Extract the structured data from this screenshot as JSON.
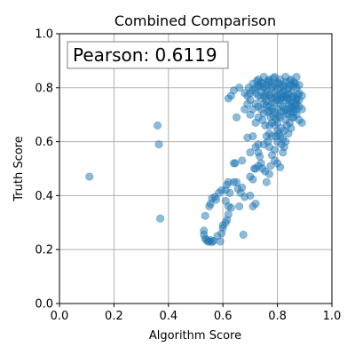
{
  "chart_data": {
    "type": "scatter",
    "title": "Combined Comparison",
    "xlabel": "Algorithm Score",
    "ylabel": "Truth Score",
    "xlim": [
      0.0,
      1.0
    ],
    "ylim": [
      0.0,
      1.0
    ],
    "xticks": [
      "0.0",
      "0.2",
      "0.4",
      "0.6",
      "0.8",
      "1.0"
    ],
    "yticks": [
      "0.0",
      "0.2",
      "0.4",
      "0.6",
      "0.8",
      "1.0"
    ],
    "grid": true,
    "marker_color": "#1f77b4",
    "annotation": "Pearson: 0.6119",
    "annotation_position": "top-left",
    "series": [
      {
        "points": [
          [
            0.11,
            0.47
          ],
          [
            0.36,
            0.66
          ],
          [
            0.365,
            0.59
          ],
          [
            0.37,
            0.315
          ],
          [
            0.53,
            0.27
          ],
          [
            0.53,
            0.255
          ],
          [
            0.535,
            0.24
          ],
          [
            0.54,
            0.235
          ],
          [
            0.545,
            0.23
          ],
          [
            0.55,
            0.23
          ],
          [
            0.555,
            0.235
          ],
          [
            0.56,
            0.228
          ],
          [
            0.565,
            0.232
          ],
          [
            0.58,
            0.25
          ],
          [
            0.59,
            0.23
          ],
          [
            0.595,
            0.26
          ],
          [
            0.6,
            0.29
          ],
          [
            0.61,
            0.3
          ],
          [
            0.62,
            0.33
          ],
          [
            0.615,
            0.31
          ],
          [
            0.6,
            0.28
          ],
          [
            0.675,
            0.255
          ],
          [
            0.535,
            0.325
          ],
          [
            0.55,
            0.36
          ],
          [
            0.555,
            0.37
          ],
          [
            0.56,
            0.39
          ],
          [
            0.57,
            0.395
          ],
          [
            0.575,
            0.385
          ],
          [
            0.585,
            0.41
          ],
          [
            0.595,
            0.42
          ],
          [
            0.61,
            0.42
          ],
          [
            0.615,
            0.44
          ],
          [
            0.62,
            0.45
          ],
          [
            0.625,
            0.41
          ],
          [
            0.64,
            0.45
          ],
          [
            0.65,
            0.45
          ],
          [
            0.655,
            0.425
          ],
          [
            0.665,
            0.41
          ],
          [
            0.67,
            0.43
          ],
          [
            0.68,
            0.395
          ],
          [
            0.61,
            0.38
          ],
          [
            0.62,
            0.36
          ],
          [
            0.63,
            0.355
          ],
          [
            0.66,
            0.36
          ],
          [
            0.7,
            0.4
          ],
          [
            0.71,
            0.36
          ],
          [
            0.72,
            0.37
          ],
          [
            0.64,
            0.52
          ],
          [
            0.645,
            0.52
          ],
          [
            0.67,
            0.53
          ],
          [
            0.7,
            0.47
          ],
          [
            0.71,
            0.46
          ],
          [
            0.715,
            0.5
          ],
          [
            0.72,
            0.5
          ],
          [
            0.73,
            0.51
          ],
          [
            0.735,
            0.545
          ],
          [
            0.73,
            0.56
          ],
          [
            0.74,
            0.52
          ],
          [
            0.745,
            0.5
          ],
          [
            0.755,
            0.49
          ],
          [
            0.76,
            0.45
          ],
          [
            0.77,
            0.48
          ],
          [
            0.775,
            0.51
          ],
          [
            0.78,
            0.55
          ],
          [
            0.79,
            0.53
          ],
          [
            0.8,
            0.52
          ],
          [
            0.81,
            0.505
          ],
          [
            0.82,
            0.56
          ],
          [
            0.7,
            0.56
          ],
          [
            0.72,
            0.58
          ],
          [
            0.73,
            0.59
          ],
          [
            0.75,
            0.59
          ],
          [
            0.765,
            0.6
          ],
          [
            0.77,
            0.58
          ],
          [
            0.79,
            0.57
          ],
          [
            0.8,
            0.6
          ],
          [
            0.81,
            0.62
          ],
          [
            0.82,
            0.61
          ],
          [
            0.83,
            0.6
          ],
          [
            0.84,
            0.63
          ],
          [
            0.85,
            0.65
          ],
          [
            0.76,
            0.62
          ],
          [
            0.77,
            0.63
          ],
          [
            0.78,
            0.62
          ],
          [
            0.8,
            0.64
          ],
          [
            0.815,
            0.65
          ],
          [
            0.825,
            0.64
          ],
          [
            0.71,
            0.62
          ],
          [
            0.69,
            0.615
          ],
          [
            0.72,
            0.67
          ],
          [
            0.73,
            0.69
          ],
          [
            0.745,
            0.68
          ],
          [
            0.755,
            0.66
          ],
          [
            0.77,
            0.66
          ],
          [
            0.78,
            0.67
          ],
          [
            0.79,
            0.66
          ],
          [
            0.8,
            0.67
          ],
          [
            0.81,
            0.69
          ],
          [
            0.83,
            0.68
          ],
          [
            0.84,
            0.7
          ],
          [
            0.86,
            0.69
          ],
          [
            0.87,
            0.7
          ],
          [
            0.88,
            0.68
          ],
          [
            0.89,
            0.67
          ],
          [
            0.65,
            0.69
          ],
          [
            0.7,
            0.7
          ],
          [
            0.71,
            0.72
          ],
          [
            0.72,
            0.74
          ],
          [
            0.73,
            0.73
          ],
          [
            0.74,
            0.72
          ],
          [
            0.75,
            0.74
          ],
          [
            0.76,
            0.75
          ],
          [
            0.77,
            0.73
          ],
          [
            0.78,
            0.72
          ],
          [
            0.79,
            0.71
          ],
          [
            0.8,
            0.72
          ],
          [
            0.81,
            0.74
          ],
          [
            0.82,
            0.73
          ],
          [
            0.83,
            0.72
          ],
          [
            0.84,
            0.74
          ],
          [
            0.85,
            0.73
          ],
          [
            0.86,
            0.72
          ],
          [
            0.87,
            0.74
          ],
          [
            0.88,
            0.73
          ],
          [
            0.89,
            0.72
          ],
          [
            0.62,
            0.76
          ],
          [
            0.63,
            0.77
          ],
          [
            0.64,
            0.79
          ],
          [
            0.66,
            0.8
          ],
          [
            0.68,
            0.78
          ],
          [
            0.69,
            0.77
          ],
          [
            0.7,
            0.78
          ],
          [
            0.71,
            0.79
          ],
          [
            0.72,
            0.78
          ],
          [
            0.73,
            0.77
          ],
          [
            0.74,
            0.76
          ],
          [
            0.75,
            0.77
          ],
          [
            0.76,
            0.78
          ],
          [
            0.77,
            0.77
          ],
          [
            0.78,
            0.76
          ],
          [
            0.79,
            0.78
          ],
          [
            0.8,
            0.77
          ],
          [
            0.81,
            0.76
          ],
          [
            0.82,
            0.78
          ],
          [
            0.83,
            0.77
          ],
          [
            0.84,
            0.76
          ],
          [
            0.85,
            0.78
          ],
          [
            0.86,
            0.77
          ],
          [
            0.87,
            0.76
          ],
          [
            0.88,
            0.78
          ],
          [
            0.89,
            0.77
          ],
          [
            0.72,
            0.8
          ],
          [
            0.73,
            0.81
          ],
          [
            0.74,
            0.82
          ],
          [
            0.75,
            0.8
          ],
          [
            0.76,
            0.81
          ],
          [
            0.77,
            0.82
          ],
          [
            0.78,
            0.8
          ],
          [
            0.79,
            0.81
          ],
          [
            0.8,
            0.82
          ],
          [
            0.81,
            0.8
          ],
          [
            0.82,
            0.81
          ],
          [
            0.83,
            0.82
          ],
          [
            0.84,
            0.8
          ],
          [
            0.85,
            0.81
          ],
          [
            0.86,
            0.82
          ],
          [
            0.87,
            0.8
          ],
          [
            0.88,
            0.81
          ],
          [
            0.73,
            0.83
          ],
          [
            0.75,
            0.84
          ],
          [
            0.77,
            0.83
          ],
          [
            0.79,
            0.84
          ],
          [
            0.81,
            0.83
          ],
          [
            0.83,
            0.84
          ],
          [
            0.85,
            0.83
          ],
          [
            0.87,
            0.84
          ],
          [
            0.74,
            0.785
          ],
          [
            0.76,
            0.795
          ],
          [
            0.78,
            0.805
          ],
          [
            0.8,
            0.795
          ],
          [
            0.82,
            0.785
          ],
          [
            0.84,
            0.795
          ],
          [
            0.86,
            0.805
          ],
          [
            0.75,
            0.705
          ],
          [
            0.77,
            0.715
          ],
          [
            0.79,
            0.745
          ],
          [
            0.81,
            0.755
          ],
          [
            0.83,
            0.765
          ],
          [
            0.85,
            0.745
          ],
          [
            0.87,
            0.755
          ],
          [
            0.76,
            0.735
          ],
          [
            0.78,
            0.745
          ],
          [
            0.8,
            0.755
          ],
          [
            0.82,
            0.765
          ],
          [
            0.84,
            0.775
          ],
          [
            0.86,
            0.745
          ],
          [
            0.88,
            0.755
          ],
          [
            0.68,
            0.72
          ],
          [
            0.69,
            0.74
          ],
          [
            0.7,
            0.755
          ],
          [
            0.695,
            0.8
          ],
          [
            0.71,
            0.815
          ],
          [
            0.725,
            0.825
          ],
          [
            0.735,
            0.805
          ],
          [
            0.745,
            0.815
          ],
          [
            0.765,
            0.825
          ],
          [
            0.785,
            0.835
          ],
          [
            0.805,
            0.815
          ],
          [
            0.825,
            0.805
          ],
          [
            0.845,
            0.825
          ],
          [
            0.865,
            0.815
          ],
          [
            0.775,
            0.69
          ],
          [
            0.785,
            0.695
          ],
          [
            0.795,
            0.685
          ],
          [
            0.805,
            0.695
          ],
          [
            0.815,
            0.71
          ],
          [
            0.825,
            0.715
          ],
          [
            0.835,
            0.705
          ],
          [
            0.845,
            0.715
          ],
          [
            0.855,
            0.725
          ],
          [
            0.865,
            0.735
          ],
          [
            0.755,
            0.765
          ],
          [
            0.775,
            0.775
          ],
          [
            0.795,
            0.765
          ],
          [
            0.815,
            0.775
          ],
          [
            0.835,
            0.755
          ],
          [
            0.855,
            0.765
          ],
          [
            0.875,
            0.775
          ],
          [
            0.795,
            0.62
          ],
          [
            0.805,
            0.63
          ],
          [
            0.815,
            0.59
          ],
          [
            0.825,
            0.58
          ],
          [
            0.835,
            0.66
          ],
          [
            0.845,
            0.67
          ],
          [
            0.855,
            0.69
          ],
          [
            0.86,
            0.71
          ],
          [
            0.87,
            0.72
          ],
          [
            0.765,
            0.71
          ]
        ]
      }
    ]
  }
}
